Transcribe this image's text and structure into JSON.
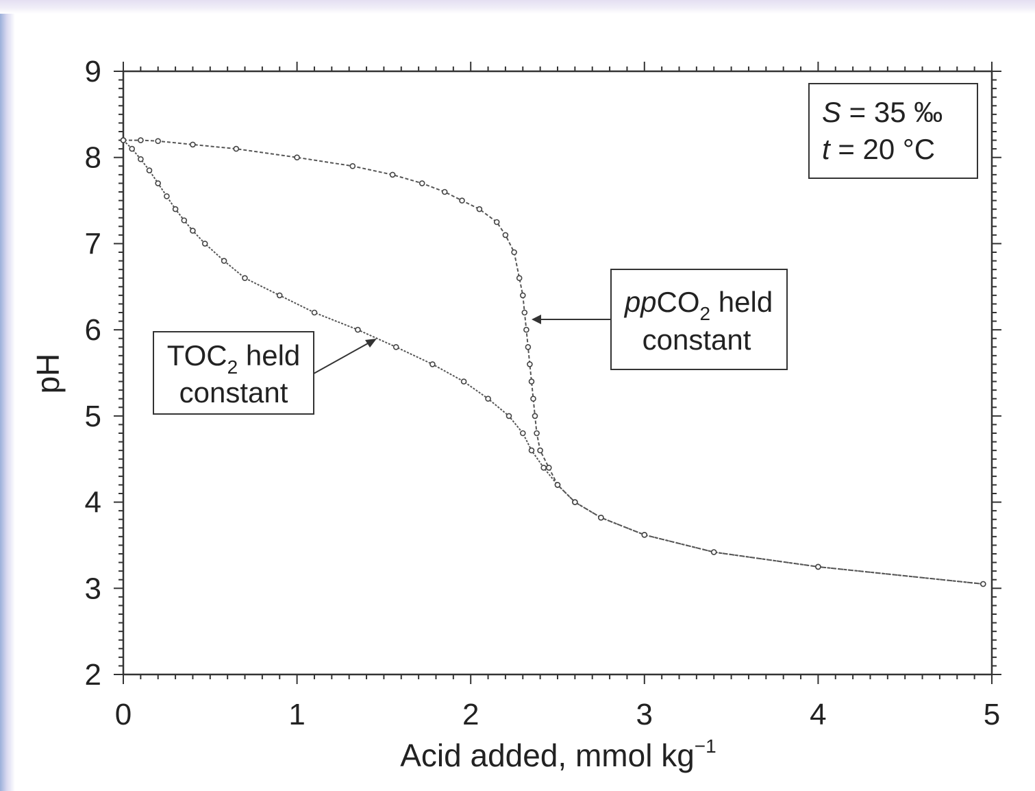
{
  "chart_data": {
    "type": "line",
    "xlabel": "Acid added, mmol kg",
    "xlabel_sup": "−1",
    "ylabel": "pH",
    "xlim": [
      0,
      5
    ],
    "ylim": [
      2,
      9
    ],
    "x_ticks": [
      "0",
      "1",
      "2",
      "3",
      "4",
      "5"
    ],
    "y_ticks": [
      "2",
      "3",
      "4",
      "5",
      "6",
      "7",
      "8",
      "9"
    ],
    "grid": false,
    "legend_box": {
      "line1_var": "S",
      "line1_rest": " = 35 ‰",
      "line2_var": "t",
      "line2_rest": " = 20 °C",
      "placement": "top-right"
    },
    "series": [
      {
        "annotation_line1_pre": "TOC",
        "annotation_line1_sub": "2",
        "annotation_line1_post": " held",
        "annotation_line2": "constant",
        "x": [
          0,
          0.05,
          0.1,
          0.15,
          0.2,
          0.25,
          0.3,
          0.35,
          0.4,
          0.47,
          0.58,
          0.7,
          0.9,
          1.1,
          1.35,
          1.57,
          1.78,
          1.96,
          2.1,
          2.22,
          2.3,
          2.35,
          2.42,
          2.5,
          2.6,
          2.75,
          3.0,
          3.4,
          4.0,
          4.95
        ],
        "y": [
          8.2,
          8.1,
          7.98,
          7.85,
          7.7,
          7.55,
          7.4,
          7.27,
          7.15,
          7.0,
          6.8,
          6.6,
          6.4,
          6.2,
          6.0,
          5.8,
          5.6,
          5.4,
          5.2,
          5.0,
          4.8,
          4.6,
          4.4,
          4.2,
          4.0,
          3.82,
          3.62,
          3.42,
          3.25,
          3.05
        ]
      },
      {
        "annotation_line1_pre_italic": "pp",
        "annotation_line1_pre": "CO",
        "annotation_line1_sub": "2",
        "annotation_line1_post": " held",
        "annotation_line2": "constant",
        "x": [
          0,
          0.1,
          0.2,
          0.4,
          0.65,
          1.0,
          1.32,
          1.55,
          1.72,
          1.85,
          1.95,
          2.05,
          2.15,
          2.2,
          2.25,
          2.28,
          2.3,
          2.31,
          2.32,
          2.33,
          2.34,
          2.35,
          2.36,
          2.37,
          2.38,
          2.4,
          2.45,
          2.5,
          2.6,
          2.75,
          3.0,
          3.4,
          4.0,
          4.95
        ],
        "y": [
          8.2,
          8.2,
          8.19,
          8.15,
          8.1,
          8.0,
          7.9,
          7.8,
          7.7,
          7.6,
          7.5,
          7.4,
          7.25,
          7.1,
          6.9,
          6.6,
          6.4,
          6.2,
          6.0,
          5.8,
          5.6,
          5.4,
          5.2,
          5.0,
          4.8,
          4.6,
          4.4,
          4.2,
          4.0,
          3.82,
          3.62,
          3.42,
          3.25,
          3.05
        ]
      }
    ]
  }
}
